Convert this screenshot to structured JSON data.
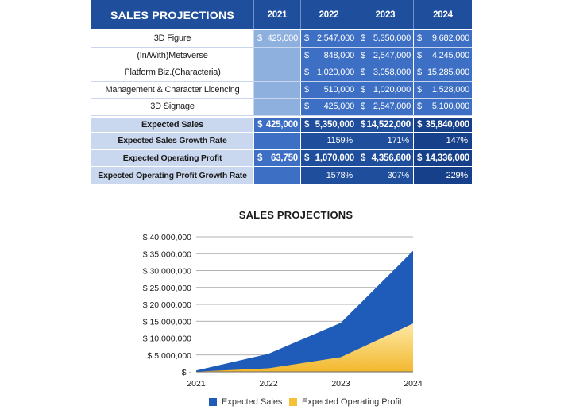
{
  "table": {
    "title": "SALES PROJECTIONS",
    "years": [
      "2021",
      "2022",
      "2023",
      "2024"
    ],
    "currency_symbol": "$",
    "rows": [
      {
        "label": "3D Figure",
        "values": [
          "425,000",
          "2,547,000",
          "5,350,000",
          "9,682,000"
        ]
      },
      {
        "label": "(In/With)Metaverse",
        "values": [
          "",
          "848,000",
          "2,547,000",
          "4,245,000"
        ]
      },
      {
        "label": "Platform Biz.(Characteria)",
        "values": [
          "",
          "1,020,000",
          "3,058,000",
          "15,285,000"
        ]
      },
      {
        "label": "Management & Character Licencing",
        "values": [
          "",
          "510,000",
          "1,020,000",
          "1,528,000"
        ]
      },
      {
        "label": "3D Signage",
        "values": [
          "",
          "425,000",
          "2,547,000",
          "5,100,000"
        ]
      }
    ],
    "summary": [
      {
        "label": "Expected Sales",
        "values": [
          "425,000",
          "5,350,000",
          "14,522,000",
          "35,840,000"
        ],
        "kind": "money"
      },
      {
        "label": "Expected Sales Growth Rate",
        "values": [
          "",
          "1159%",
          "171%",
          "147%"
        ],
        "kind": "pct"
      },
      {
        "label": "Expected Operating Profit",
        "values": [
          "63,750",
          "1,070,000",
          "4,356,600",
          "14,336,000"
        ],
        "kind": "money"
      },
      {
        "label": "Expected Operating Profit Growth Rate",
        "values": [
          "",
          "1578%",
          "307%",
          "229%"
        ],
        "kind": "pct"
      }
    ]
  },
  "chart_data": {
    "type": "area",
    "title": "SALES PROJECTIONS",
    "categories": [
      "2021",
      "2022",
      "2023",
      "2024"
    ],
    "series": [
      {
        "name": "Expected Sales",
        "values": [
          425000,
          5350000,
          14522000,
          35840000
        ],
        "color": "#1f5bb8"
      },
      {
        "name": "Expected Operating Profit",
        "values": [
          63750,
          1070000,
          4356600,
          14336000
        ],
        "color": "#f6c03b"
      }
    ],
    "ylim": [
      0,
      40000000
    ],
    "yticks": [
      0,
      5000000,
      10000000,
      15000000,
      20000000,
      25000000,
      30000000,
      35000000,
      40000000
    ],
    "ytick_labels": [
      "$ -",
      "$ 5,000,000",
      "$ 10,000,000",
      "$ 15,000,000",
      "$ 20,000,000",
      "$ 25,000,000",
      "$ 30,000,000",
      "$ 35,000,000",
      "$ 40,000,000"
    ],
    "grid": true,
    "legend_position": "bottom"
  },
  "colors": {
    "header_blue": "#1f4e9c",
    "cell_blue": "#3d6fc4",
    "light_blue": "#8eb0df",
    "label_blue": "#cad8ef",
    "sales_area": "#1f5bb8",
    "profit_area": "#f6c03b"
  }
}
